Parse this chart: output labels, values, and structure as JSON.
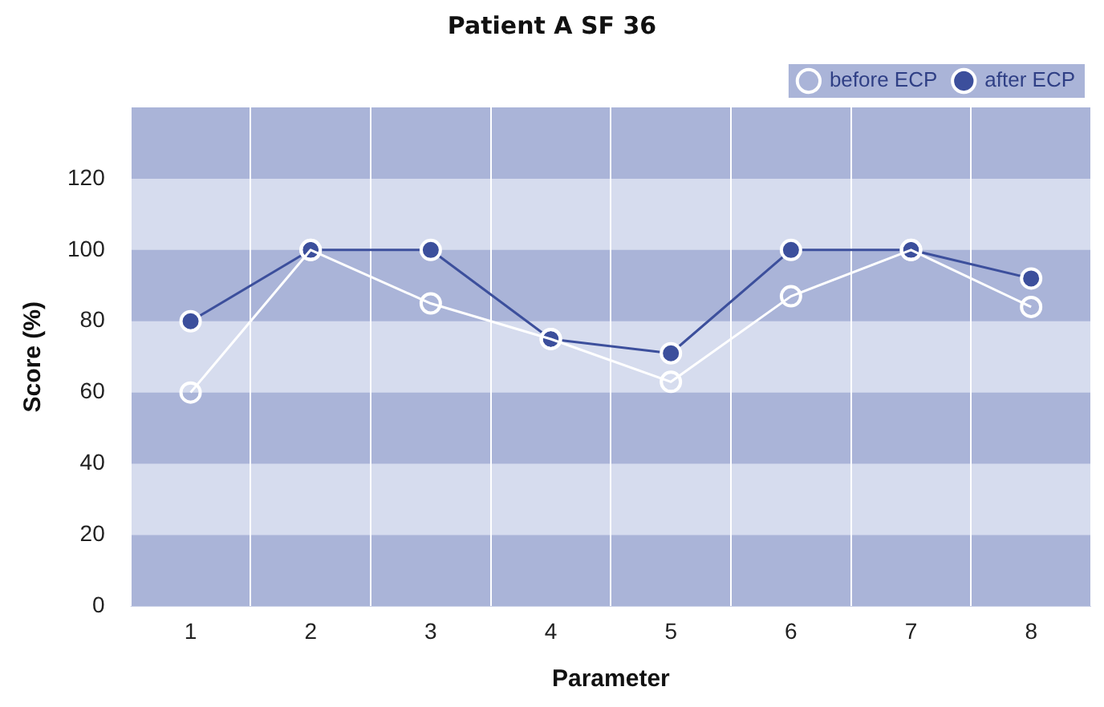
{
  "chart_data": {
    "type": "line",
    "title": "Patient A SF 36",
    "xlabel": "Parameter",
    "ylabel": "Score (%)",
    "categories": [
      "1",
      "2",
      "3",
      "4",
      "5",
      "6",
      "7",
      "8"
    ],
    "series": [
      {
        "name": "before ECP",
        "color": "#ffffff",
        "values": [
          60,
          100,
          85,
          75,
          63,
          87,
          100,
          84
        ]
      },
      {
        "name": "after ECP",
        "color": "#3c4f9c",
        "values": [
          80,
          100,
          100,
          75,
          71,
          100,
          100,
          92
        ]
      }
    ],
    "bands": [
      {
        "axis": "y",
        "from": 0,
        "to": 20,
        "color": "#aab4d8"
      },
      {
        "axis": "y",
        "from": 40,
        "to": 60,
        "color": "#aab4d8"
      },
      {
        "axis": "y",
        "from": 80,
        "to": 100,
        "color": "#aab4d8"
      },
      {
        "axis": "y",
        "from": 120,
        "to": 140,
        "color": "#aab4d8"
      }
    ],
    "ylim": [
      0,
      140
    ],
    "yticks": [
      0,
      20,
      40,
      60,
      80,
      100,
      120
    ],
    "grid": true,
    "legend": "top right",
    "marker": "circle",
    "line_style": "solid"
  }
}
